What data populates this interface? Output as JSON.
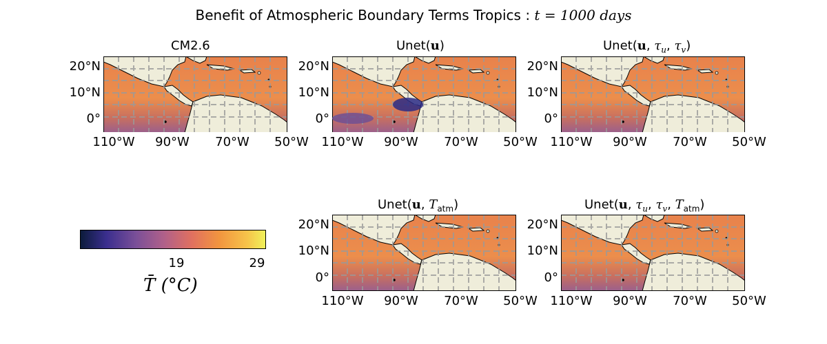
{
  "figure": {
    "suptitle_prefix": "Benefit of Atmospheric Boundary Terms Tropics : ",
    "suptitle_math": "t = 1000 days"
  },
  "panels": [
    {
      "id": "cm26",
      "title": "CM2.6"
    },
    {
      "id": "unet-u",
      "title": "Unet(u)"
    },
    {
      "id": "unet-u-tau",
      "title": "Unet(u, τu, τv)"
    },
    {
      "id": "unet-u-tatm",
      "title": "Unet(u, Tatm)"
    },
    {
      "id": "unet-u-tau-tatm",
      "title": "Unet(u, τu, τv, Tatm)"
    }
  ],
  "axes": {
    "lat_ticks": [
      "20°N",
      "10°N",
      "0°"
    ],
    "lon_ticks": [
      "110°W",
      "90°W",
      "70°W",
      "50°W"
    ]
  },
  "colorbar": {
    "ticks": [
      "19",
      "29"
    ],
    "label": "T̄ (°C)",
    "colormap": [
      "#0b1b3a",
      "#3a2e8e",
      "#7a4f98",
      "#b0608a",
      "#e07060",
      "#f2953f",
      "#f6c34a",
      "#f0f25a"
    ]
  },
  "colors": {
    "land": "#efedda",
    "ocean_warm": "#ec8a4c",
    "ocean_mid": "#d9744f",
    "ocean_cool": "#8a5a94",
    "ocean_cold": "#2a2a86",
    "grid": "#9a9a9a"
  }
}
